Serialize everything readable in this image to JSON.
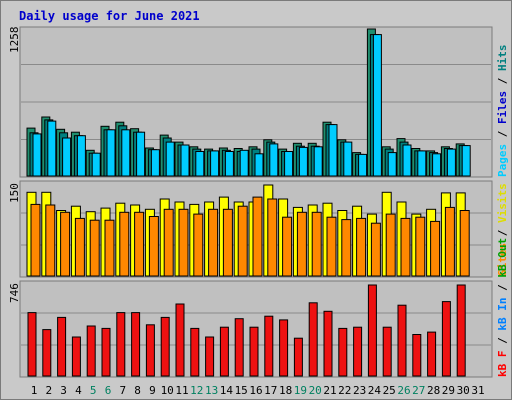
{
  "title": "Daily usage for June 2021",
  "colors": {
    "pages": "#00ccff",
    "files": "#0000cc",
    "hits": "#008080",
    "hits_bar": "#1f8f6f",
    "visits": "#ffff00",
    "sites": "#ff8800",
    "kb_in": "#0080ff",
    "kb_out": "#00a000",
    "kb_f": "#ff0000",
    "kb_bar": "#ee1111",
    "weekend_label": "#008060",
    "weekday_label": "#000000"
  },
  "chart_data": [
    {
      "type": "bar",
      "panel": "hits-files-pages",
      "ymax_label": "1258",
      "ylim": [
        0,
        1258
      ],
      "categories": [
        "1",
        "2",
        "3",
        "4",
        "5",
        "6",
        "7",
        "8",
        "9",
        "10",
        "11",
        "12",
        "13",
        "14",
        "15",
        "16",
        "17",
        "18",
        "19",
        "20",
        "21",
        "22",
        "23",
        "24",
        "25",
        "26",
        "27",
        "28",
        "29",
        "30",
        "31"
      ],
      "weekend": [
        "5",
        "6",
        "12",
        "13",
        "19",
        "20",
        "26",
        "27"
      ],
      "series": [
        {
          "name": "Hits",
          "values": [
            410,
            505,
            400,
            375,
            220,
            425,
            460,
            405,
            240,
            350,
            290,
            250,
            230,
            240,
            235,
            250,
            310,
            230,
            280,
            280,
            460,
            310,
            200,
            1258,
            250,
            320,
            235,
            215,
            250,
            275,
            0
          ]
        },
        {
          "name": "Files",
          "values": [
            370,
            480,
            370,
            345,
            195,
            395,
            430,
            375,
            225,
            325,
            265,
            230,
            215,
            220,
            210,
            230,
            290,
            210,
            255,
            255,
            440,
            290,
            185,
            1210,
            230,
            290,
            215,
            200,
            235,
            260,
            0
          ]
        },
        {
          "name": "Pages",
          "values": [
            360,
            470,
            325,
            345,
            195,
            395,
            395,
            375,
            225,
            290,
            265,
            210,
            215,
            210,
            220,
            190,
            275,
            210,
            245,
            250,
            440,
            290,
            185,
            1210,
            200,
            265,
            215,
            190,
            230,
            260,
            0
          ]
        }
      ]
    },
    {
      "type": "bar",
      "panel": "visits-sites",
      "ymax_label": "150",
      "ylim": [
        0,
        150
      ],
      "categories": [
        "1",
        "2",
        "3",
        "4",
        "5",
        "6",
        "7",
        "8",
        "9",
        "10",
        "11",
        "12",
        "13",
        "14",
        "15",
        "16",
        "17",
        "18",
        "19",
        "20",
        "21",
        "22",
        "23",
        "24",
        "25",
        "26",
        "27",
        "28",
        "29",
        "30",
        "31"
      ],
      "series": [
        {
          "name": "Visits",
          "values": [
            138,
            138,
            108,
            115,
            106,
            112,
            120,
            117,
            110,
            127,
            122,
            118,
            122,
            130,
            122,
            122,
            150,
            127,
            113,
            117,
            120,
            108,
            115,
            102,
            138,
            122,
            102,
            110,
            137,
            137,
            0
          ]
        },
        {
          "name": "Sites",
          "values": [
            118,
            117,
            105,
            95,
            92,
            92,
            105,
            105,
            98,
            110,
            110,
            102,
            110,
            110,
            115,
            130,
            127,
            97,
            105,
            105,
            97,
            93,
            95,
            87,
            102,
            95,
            97,
            90,
            113,
            108,
            0
          ]
        }
      ]
    },
    {
      "type": "bar",
      "panel": "kbytes",
      "ymax_label": "746",
      "ylim": [
        0,
        746
      ],
      "categories": [
        "1",
        "2",
        "3",
        "4",
        "5",
        "6",
        "7",
        "8",
        "9",
        "10",
        "11",
        "12",
        "13",
        "14",
        "15",
        "16",
        "17",
        "18",
        "19",
        "20",
        "21",
        "22",
        "23",
        "24",
        "25",
        "26",
        "27",
        "28",
        "29",
        "30",
        "31"
      ],
      "series": [
        {
          "name": "KBytes",
          "values": [
            520,
            380,
            480,
            320,
            410,
            390,
            520,
            520,
            420,
            480,
            590,
            390,
            320,
            400,
            470,
            400,
            490,
            460,
            310,
            600,
            530,
            390,
            400,
            746,
            400,
            580,
            340,
            360,
            610,
            746,
            0
          ]
        }
      ]
    }
  ],
  "legend": {
    "top": {
      "pages": "Pages",
      "files": "Files",
      "hits": "Hits",
      "sep": "/"
    },
    "middle": {
      "sites": "Sites",
      "visits": "Visits",
      "sep": "/"
    },
    "bottom": {
      "kb_f": "kB F",
      "kb_in": "kB In",
      "kb_out": "kB Out",
      "sep": "/"
    }
  }
}
